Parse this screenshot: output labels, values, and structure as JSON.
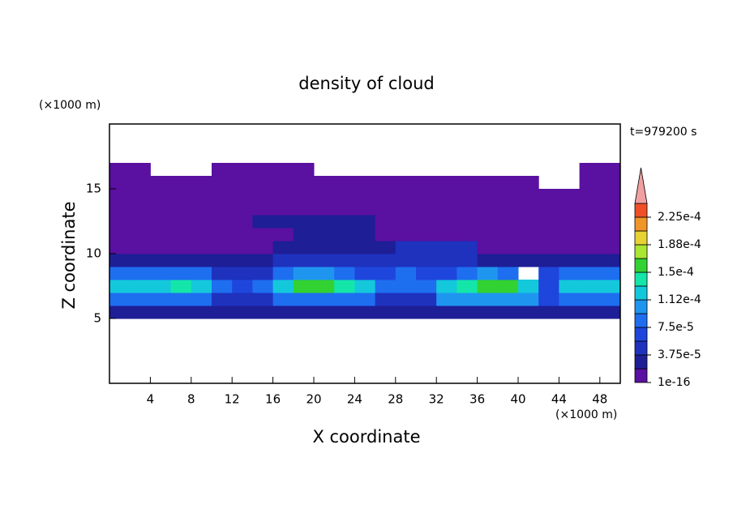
{
  "chart_data": {
    "type": "contour",
    "title": "density of cloud",
    "annotation": "t=979200 s",
    "x_label": "X coordinate",
    "y_label": "Z coordinate",
    "x_unit": "(×1000 m)",
    "y_unit": "(×1000 m)",
    "xlim": [
      0,
      50
    ],
    "ylim": [
      0,
      20
    ],
    "xticks": [
      4,
      8,
      12,
      16,
      20,
      24,
      28,
      32,
      36,
      40,
      44,
      48
    ],
    "yticks": [
      5,
      10,
      15
    ],
    "x": [
      1,
      3,
      5,
      7,
      9,
      11,
      13,
      15,
      17,
      19,
      21,
      23,
      25,
      27,
      29,
      31,
      33,
      35,
      37,
      39,
      41,
      43,
      45,
      47,
      49
    ],
    "z": [
      0.5,
      1.5,
      2.5,
      3.5,
      4.5,
      5.5,
      6.5,
      7.5,
      8.5,
      9.5,
      10.5,
      11.5,
      12.5,
      13.5,
      14.5,
      15.5,
      16.5,
      17.5,
      18.5,
      19.5
    ],
    "values": [
      [
        null,
        null,
        null,
        null,
        null,
        null,
        null,
        null,
        null,
        null,
        null,
        null,
        null,
        null,
        null,
        null,
        null,
        null,
        null,
        null,
        null,
        null,
        null,
        null,
        null
      ],
      [
        null,
        null,
        null,
        null,
        null,
        null,
        null,
        null,
        null,
        null,
        null,
        null,
        null,
        null,
        null,
        null,
        null,
        null,
        null,
        null,
        null,
        null,
        null,
        null,
        null
      ],
      [
        null,
        null,
        null,
        null,
        null,
        null,
        null,
        null,
        null,
        null,
        null,
        null,
        null,
        null,
        null,
        null,
        null,
        null,
        null,
        null,
        null,
        null,
        null,
        null,
        null
      ],
      [
        null,
        null,
        null,
        null,
        null,
        null,
        null,
        null,
        null,
        null,
        null,
        null,
        null,
        null,
        null,
        null,
        null,
        null,
        null,
        null,
        null,
        null,
        null,
        null,
        null
      ],
      [
        null,
        null,
        null,
        null,
        null,
        null,
        null,
        null,
        null,
        null,
        null,
        null,
        null,
        null,
        null,
        null,
        null,
        null,
        null,
        null,
        null,
        null,
        null,
        null,
        null
      ],
      [
        3e-05,
        3e-05,
        3e-05,
        3e-05,
        3e-05,
        2e-05,
        2e-05,
        3e-05,
        3e-05,
        3e-05,
        3e-05,
        3e-05,
        3e-05,
        2e-05,
        2e-05,
        3e-05,
        3e-05,
        3e-05,
        3e-05,
        3e-05,
        3e-05,
        2e-05,
        3e-05,
        3e-05,
        3e-05
      ],
      [
        9e-05,
        9e-05,
        9e-05,
        9e-05,
        9e-05,
        5e-05,
        5e-05,
        5e-05,
        9e-05,
        9e-05,
        9e-05,
        9e-05,
        9e-05,
        5e-05,
        5e-05,
        5e-05,
        0.0001,
        0.0001,
        0.0001,
        0.0001,
        0.0001,
        6e-05,
        9e-05,
        9e-05,
        9e-05
      ],
      [
        0.00012,
        0.000125,
        0.00013,
        0.00014,
        0.00013,
        8e-05,
        7e-05,
        9e-05,
        0.00013,
        0.00015,
        0.000155,
        0.000145,
        0.00012,
        8e-05,
        9e-05,
        8e-05,
        0.00012,
        0.000145,
        0.000165,
        0.00016,
        0.00013,
        7e-05,
        0.00012,
        0.000125,
        0.00012
      ],
      [
        8e-05,
        9e-05,
        8e-05,
        8e-05,
        8e-05,
        5e-05,
        4e-05,
        5e-05,
        8e-05,
        0.0001,
        0.00011,
        9e-05,
        6e-05,
        7e-05,
        8e-05,
        6e-05,
        7e-05,
        9e-05,
        0.00011,
        9e-05,
        null,
        6e-05,
        9e-05,
        9e-05,
        9e-05
      ],
      [
        2.5e-05,
        2.5e-05,
        2.5e-05,
        2.5e-05,
        2.5e-05,
        3e-05,
        3e-05,
        3e-05,
        4e-05,
        4e-05,
        4e-05,
        4e-05,
        4e-05,
        4e-05,
        4e-05,
        4e-05,
        4e-05,
        4e-05,
        2e-05,
        2e-05,
        2e-05,
        2e-05,
        2e-05,
        2e-05,
        2e-05
      ],
      [
        1e-05,
        1e-05,
        1e-05,
        1e-05,
        1e-05,
        1e-05,
        1e-05,
        1e-05,
        2e-05,
        2e-05,
        2e-05,
        2e-05,
        2e-05,
        2e-05,
        4e-05,
        4e-05,
        4e-05,
        4e-05,
        1e-05,
        1e-05,
        1e-05,
        1e-05,
        1e-05,
        1e-05,
        1e-05
      ],
      [
        1e-05,
        1e-05,
        1e-05,
        1e-05,
        1e-05,
        1e-05,
        1e-05,
        1e-05,
        1e-05,
        2e-05,
        2e-05,
        2e-05,
        2e-05,
        1e-05,
        1e-05,
        1e-05,
        1e-05,
        1e-05,
        1e-05,
        1e-05,
        1e-05,
        1e-05,
        1e-05,
        1e-05,
        1e-05
      ],
      [
        1e-05,
        1e-05,
        1e-05,
        1e-05,
        1e-05,
        1e-05,
        1e-05,
        2e-05,
        2e-05,
        2e-05,
        2e-05,
        2e-05,
        2e-05,
        1e-05,
        1e-05,
        1e-05,
        1e-05,
        1e-05,
        1e-05,
        1e-05,
        1e-05,
        1e-05,
        1e-05,
        1e-05,
        1e-05
      ],
      [
        1e-05,
        1e-05,
        1e-05,
        1e-05,
        1e-05,
        1e-05,
        1e-05,
        1e-05,
        1e-05,
        1e-05,
        1e-05,
        1e-05,
        1e-05,
        1e-05,
        1e-05,
        1e-05,
        1e-05,
        1e-05,
        1e-05,
        1e-05,
        1e-05,
        1e-05,
        1e-05,
        1e-05,
        1e-05
      ],
      [
        1e-05,
        1e-05,
        1e-05,
        1e-05,
        1e-05,
        1e-05,
        1e-05,
        1e-05,
        1e-05,
        1e-05,
        1e-05,
        1e-05,
        1e-05,
        1e-05,
        1e-05,
        1e-05,
        1e-05,
        1e-05,
        1e-05,
        1e-05,
        1e-05,
        1e-05,
        1e-05,
        1e-05,
        1e-05
      ],
      [
        1e-05,
        1e-05,
        1e-05,
        1e-05,
        1e-05,
        1e-05,
        1e-05,
        1e-05,
        1e-05,
        1e-05,
        1e-05,
        1e-05,
        1e-05,
        1e-05,
        1e-05,
        1e-05,
        1e-05,
        1e-05,
        1e-05,
        1e-05,
        1e-05,
        null,
        null,
        1e-05,
        1e-05
      ],
      [
        1e-05,
        1e-05,
        null,
        null,
        null,
        1e-05,
        1e-05,
        1e-05,
        1e-05,
        1e-05,
        null,
        null,
        null,
        null,
        null,
        null,
        null,
        null,
        null,
        null,
        null,
        null,
        null,
        1e-05,
        1e-05
      ],
      [
        null,
        null,
        null,
        null,
        null,
        null,
        null,
        null,
        null,
        null,
        null,
        null,
        null,
        null,
        null,
        null,
        null,
        null,
        null,
        null,
        null,
        null,
        null,
        null,
        null
      ],
      [
        null,
        null,
        null,
        null,
        null,
        null,
        null,
        null,
        null,
        null,
        null,
        null,
        null,
        null,
        null,
        null,
        null,
        null,
        null,
        null,
        null,
        null,
        null,
        null,
        null
      ],
      [
        null,
        null,
        null,
        null,
        null,
        null,
        null,
        null,
        null,
        null,
        null,
        null,
        null,
        null,
        null,
        null,
        null,
        null,
        null,
        null,
        null,
        null,
        null,
        null,
        null
      ]
    ],
    "levels": [
      1e-16,
      1.875e-05,
      3.75e-05,
      5.625e-05,
      7.5e-05,
      9.375e-05,
      0.0001125,
      0.00013125,
      0.00015,
      0.00016875,
      0.0001875,
      0.00020625,
      0.000225,
      0.00024375
    ],
    "colors": [
      "#5a10a0",
      "#1e1e96",
      "#1e32be",
      "#1e46dc",
      "#1e6ef0",
      "#1e96f0",
      "#14c8dc",
      "#14e6aa",
      "#32d232",
      "#aae632",
      "#e6d232",
      "#f09628",
      "#f05028",
      "#f0a0a0"
    ],
    "cticks": [
      {
        "value": 1e-16,
        "label": "1e-16"
      },
      {
        "value": 3.75e-05,
        "label": "3.75e-5"
      },
      {
        "value": 7.5e-05,
        "label": "7.5e-5"
      },
      {
        "value": 0.0001125,
        "label": "1.12e-4"
      },
      {
        "value": 0.00015,
        "label": "1.5e-4"
      },
      {
        "value": 0.0001875,
        "label": "1.88e-4"
      },
      {
        "value": 0.000225,
        "label": "2.25e-4"
      }
    ]
  }
}
